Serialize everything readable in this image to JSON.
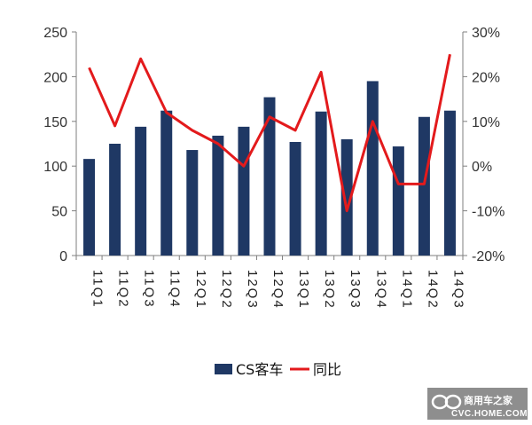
{
  "chart_data": {
    "type": "bar",
    "categories": [
      "11Q1",
      "11Q2",
      "11Q3",
      "11Q4",
      "12Q1",
      "12Q2",
      "12Q3",
      "12Q4",
      "13Q1",
      "13Q2",
      "13Q3",
      "13Q4",
      "14Q1",
      "14Q2",
      "14Q3"
    ],
    "series": [
      {
        "name": "CS客车",
        "type": "bar",
        "axis": "left",
        "color": "#1f3864",
        "values": [
          108,
          125,
          144,
          162,
          118,
          134,
          144,
          177,
          127,
          161,
          130,
          195,
          122,
          155,
          162
        ]
      },
      {
        "name": "同比",
        "type": "line",
        "axis": "right",
        "color": "#e31a1c",
        "values": [
          22,
          9,
          24,
          12,
          8,
          5,
          0,
          11,
          8,
          21,
          -10,
          10,
          -4,
          -4,
          25
        ]
      }
    ],
    "left_axis": {
      "ylim": [
        0,
        250
      ],
      "ticks": [
        "0",
        "50",
        "100",
        "150",
        "200",
        "250"
      ]
    },
    "right_axis": {
      "ylim": [
        -20,
        30
      ],
      "ticks": [
        "-20%",
        "-10%",
        "0%",
        "10%",
        "20%",
        "30%"
      ]
    },
    "title": "",
    "xlabel": "",
    "ylabel": "",
    "grid": false,
    "legend": {
      "placement": "bottom-center",
      "entries": [
        "CS客车",
        "同比"
      ]
    }
  },
  "watermark": {
    "brand": "商用车之家",
    "url": "CVC.HOME.COM",
    "icon": "infinity-logo-icon"
  }
}
